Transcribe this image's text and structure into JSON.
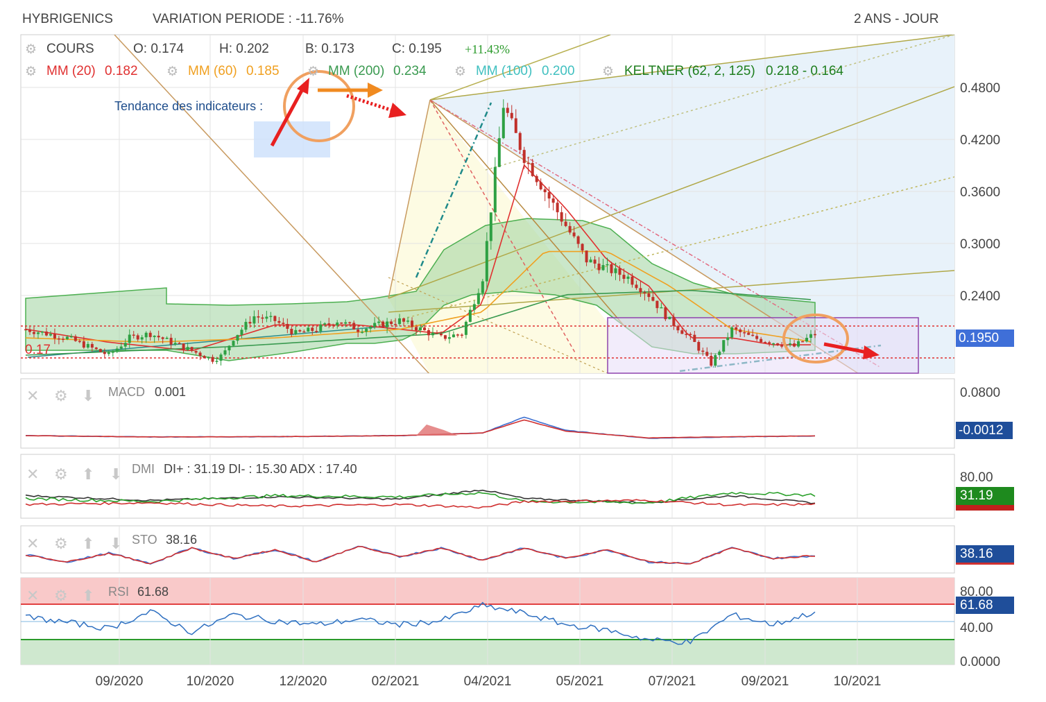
{
  "header": {
    "name": "HYBRIGENICS",
    "variation": "VARIATION PERIODE : -11.76%",
    "period": "2 ANS - JOUR"
  },
  "legend": {
    "cours": "COURS",
    "open": "O: 0.174",
    "high": "H: 0.202",
    "low": "B: 0.173",
    "close": "C: 0.195",
    "change": "+11.43%",
    "mm20_name": "MM (20)",
    "mm20_val": "0.182",
    "mm60_name": "MM (60)",
    "mm60_val": "0.185",
    "mm200_name": "MM (200)",
    "mm200_val": "0.234",
    "mm100_name": "MM (100)",
    "mm100_val": "0.200",
    "keltner_name": "KELTNER (62, 2, 125)",
    "keltner_val": "0.218 - 0.164"
  },
  "annotation": {
    "trend_label": "Tendance des indicateurs :",
    "level_label": "0.17"
  },
  "colors": {
    "mm20": "#e03030",
    "mm60": "#f0a020",
    "mm200": "#3a9a50",
    "mm100": "#40c0c0",
    "keltner": "#1e7e1e",
    "up": "#2ea043",
    "down": "#c0302a",
    "price_badge": "#3f6fd8"
  },
  "chart_data": [
    {
      "type": "line",
      "title": "COURS",
      "x_ticks": [
        "09/2020",
        "10/2020",
        "12/2020",
        "02/2021",
        "04/2021",
        "05/2021",
        "07/2021",
        "09/2021",
        "10/2021"
      ],
      "y_ticks": [
        "0.4800",
        "0.4200",
        "0.3600",
        "0.3000",
        "0.2400"
      ],
      "ylim": [
        0.12,
        0.5
      ],
      "current_price": "0.1950",
      "support_lines": [
        0.205,
        0.168
      ],
      "series": [
        {
          "name": "COURS",
          "x": [
            0,
            10,
            20,
            30,
            40,
            50,
            60,
            70,
            80,
            90,
            95,
            100,
            110,
            120,
            130,
            140,
            150,
            160,
            170,
            180,
            190,
            200,
            210,
            220,
            230,
            240,
            250,
            260,
            270,
            280,
            290,
            300,
            310,
            320,
            330,
            340,
            350,
            360,
            370,
            380
          ],
          "values": [
            0.2,
            0.195,
            0.19,
            0.18,
            0.17,
            0.19,
            0.195,
            0.185,
            0.175,
            0.165,
            0.17,
            0.19,
            0.215,
            0.21,
            0.195,
            0.2,
            0.21,
            0.2,
            0.205,
            0.21,
            0.2,
            0.19,
            0.195,
            0.26,
            0.46,
            0.4,
            0.36,
            0.32,
            0.28,
            0.27,
            0.26,
            0.24,
            0.21,
            0.19,
            0.16,
            0.2,
            0.19,
            0.185,
            0.18,
            0.195
          ]
        },
        {
          "name": "MM (20)",
          "x": [
            0,
            40,
            80,
            120,
            160,
            200,
            220,
            240,
            260,
            280,
            300,
            320,
            340,
            360,
            380
          ],
          "values": [
            0.2,
            0.185,
            0.175,
            0.205,
            0.205,
            0.195,
            0.23,
            0.39,
            0.34,
            0.28,
            0.25,
            0.19,
            0.19,
            0.182,
            0.182
          ]
        },
        {
          "name": "MM (60)",
          "x": [
            0,
            60,
            120,
            180,
            220,
            250,
            280,
            310,
            340,
            380
          ],
          "values": [
            0.19,
            0.185,
            0.19,
            0.2,
            0.22,
            0.29,
            0.29,
            0.25,
            0.2,
            0.185
          ]
        },
        {
          "name": "MM (200)",
          "x": [
            0,
            100,
            200,
            260,
            320,
            380
          ],
          "values": [
            0.17,
            0.18,
            0.195,
            0.24,
            0.245,
            0.234
          ]
        }
      ]
    },
    {
      "type": "line",
      "title": "MACD",
      "value": "0.001",
      "current": "-0.0012",
      "y_ticks": [
        "0.0800"
      ],
      "series": [
        {
          "name": "MACD",
          "x": [
            0,
            60,
            120,
            180,
            220,
            240,
            260,
            300,
            340,
            380
          ],
          "values": [
            0.0,
            -0.005,
            -0.004,
            0.0,
            0.01,
            0.07,
            0.02,
            -0.01,
            -0.005,
            -0.0012
          ]
        }
      ]
    },
    {
      "type": "line",
      "title": "DMI",
      "value": "DI+ : 31.19 DI- : 15.30 ADX : 17.40",
      "current": "31.19",
      "y_ticks": [
        "80.00"
      ],
      "series": [
        {
          "name": "DI+",
          "x": [
            0,
            60,
            120,
            180,
            220,
            240,
            300,
            340,
            380
          ],
          "values": [
            25,
            20,
            30,
            28,
            35,
            20,
            18,
            35,
            31.19
          ]
        },
        {
          "name": "DI-",
          "x": [
            0,
            60,
            120,
            180,
            220,
            240,
            300,
            340,
            380
          ],
          "values": [
            15,
            18,
            12,
            15,
            10,
            20,
            22,
            14,
            15.3
          ]
        },
        {
          "name": "ADX",
          "x": [
            0,
            60,
            120,
            180,
            220,
            240,
            300,
            340,
            380
          ],
          "values": [
            30,
            22,
            28,
            24,
            40,
            25,
            18,
            30,
            17.4
          ]
        }
      ]
    },
    {
      "type": "line",
      "title": "STO",
      "value": "38.16",
      "current": "38.16",
      "series": [
        {
          "name": "STO",
          "x": [
            0,
            20,
            40,
            60,
            80,
            100,
            120,
            140,
            160,
            180,
            200,
            220,
            240,
            260,
            280,
            300,
            320,
            340,
            360,
            380
          ],
          "values": [
            40,
            20,
            45,
            15,
            60,
            30,
            55,
            20,
            65,
            35,
            60,
            25,
            60,
            30,
            55,
            20,
            15,
            60,
            30,
            38.16
          ]
        }
      ]
    },
    {
      "type": "line",
      "title": "RSI",
      "value": "61.68",
      "current": "61.68",
      "y_ticks": [
        "80.00",
        "40.00",
        "0.0000"
      ],
      "series": [
        {
          "name": "RSI",
          "x": [
            0,
            20,
            40,
            60,
            80,
            100,
            120,
            140,
            160,
            180,
            200,
            220,
            240,
            260,
            280,
            300,
            320,
            340,
            360,
            380
          ],
          "values": [
            55,
            48,
            40,
            62,
            35,
            58,
            50,
            45,
            52,
            45,
            50,
            70,
            60,
            45,
            38,
            25,
            22,
            58,
            45,
            61.68
          ]
        }
      ]
    }
  ]
}
